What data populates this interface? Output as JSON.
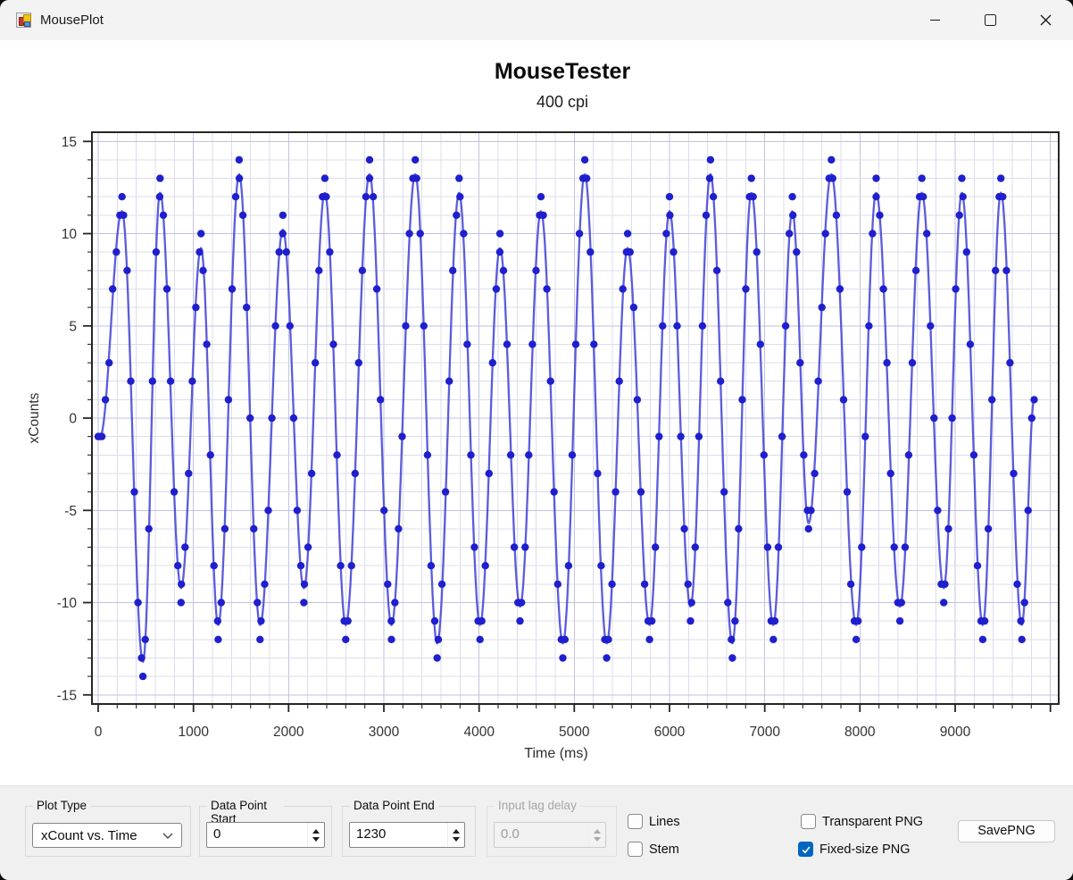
{
  "window": {
    "title": "MousePlot",
    "controls": {
      "minimize": "minimize",
      "maximize": "maximize",
      "close": "close"
    }
  },
  "chart_data": {
    "type": "scatter+line",
    "title": "MouseTester",
    "subtitle": "400 cpi",
    "xlabel": "Time (ms)",
    "ylabel": "xCounts",
    "series_name": "xCount",
    "xlim": [
      -65,
      10090
    ],
    "ylim": [
      -15.5,
      15.5
    ],
    "x_major_ticks": [
      0,
      1000,
      2000,
      3000,
      4000,
      5000,
      6000,
      7000,
      8000,
      9000
    ],
    "x_minor_step": 200,
    "y_major_ticks": [
      -15,
      -10,
      -5,
      0,
      5,
      10,
      15
    ],
    "y_minor_step": 1,
    "grid": true,
    "legend": "none",
    "marker_color": "#1f1fce",
    "line_color": "#4040d6",
    "grid_minor_color": "#dcdcee",
    "grid_major_color": "#c2c2e2",
    "axis_color": "#262626",
    "sample_interval_ms": 38,
    "line_step_ms": 8,
    "curve_inset": 0.78,
    "extrema": [
      [
        20,
        -1
      ],
      [
        250,
        12
      ],
      [
        470,
        -14
      ],
      [
        650,
        13
      ],
      [
        870,
        -10
      ],
      [
        1080,
        10
      ],
      [
        1260,
        -12
      ],
      [
        1480,
        14
      ],
      [
        1700,
        -12
      ],
      [
        1940,
        11
      ],
      [
        2160,
        -10
      ],
      [
        2380,
        13
      ],
      [
        2600,
        -12
      ],
      [
        2850,
        14
      ],
      [
        3080,
        -12
      ],
      [
        3330,
        14
      ],
      [
        3560,
        -13
      ],
      [
        3790,
        13
      ],
      [
        4010,
        -12
      ],
      [
        4220,
        10
      ],
      [
        4430,
        -11
      ],
      [
        4650,
        12
      ],
      [
        4880,
        -13
      ],
      [
        5110,
        14
      ],
      [
        5340,
        -13
      ],
      [
        5560,
        10
      ],
      [
        5790,
        -12
      ],
      [
        6000,
        12
      ],
      [
        6220,
        -11
      ],
      [
        6430,
        14
      ],
      [
        6660,
        -13
      ],
      [
        6860,
        13
      ],
      [
        7090,
        -12
      ],
      [
        7290,
        12
      ],
      [
        7460,
        -6
      ],
      [
        7700,
        14
      ],
      [
        7960,
        -12
      ],
      [
        8170,
        13
      ],
      [
        8420,
        -11
      ],
      [
        8650,
        13
      ],
      [
        8880,
        -10
      ],
      [
        9070,
        13
      ],
      [
        9290,
        -12
      ],
      [
        9480,
        13
      ],
      [
        9700,
        -12
      ],
      [
        9830,
        1
      ]
    ]
  },
  "panel": {
    "plot_type": {
      "label": "Plot Type",
      "value": "xCount vs. Time"
    },
    "data_point_start": {
      "label": "Data Point Start",
      "value": "0"
    },
    "data_point_end": {
      "label": "Data Point End",
      "value": "1230"
    },
    "input_lag_delay": {
      "label": "Input lag delay",
      "value": "0.0",
      "disabled": true
    },
    "checkboxes": {
      "lines": {
        "label": "Lines",
        "checked": false
      },
      "stem": {
        "label": "Stem",
        "checked": false
      },
      "transparent_png": {
        "label": "Transparent PNG",
        "checked": false
      },
      "fixed_size_png": {
        "label": "Fixed-size PNG",
        "checked": true
      }
    },
    "save_button": "SavePNG",
    "accent_color": "#0067c0"
  }
}
